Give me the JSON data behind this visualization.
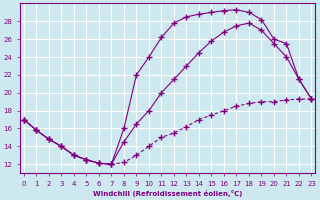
{
  "xlabel": "Windchill (Refroidissement éolien,°C)",
  "bg_color": "#cde8ef",
  "grid_color": "#ffffff",
  "line_color": "#800080",
  "x_ticks": [
    0,
    1,
    2,
    3,
    4,
    5,
    6,
    7,
    8,
    9,
    10,
    11,
    12,
    13,
    14,
    15,
    16,
    17,
    18,
    19,
    20,
    21,
    22,
    23
  ],
  "y_ticks": [
    12,
    14,
    16,
    18,
    20,
    22,
    24,
    26,
    28
  ],
  "xlim": [
    -0.3,
    23.3
  ],
  "ylim": [
    11.0,
    30.0
  ],
  "line1_x": [
    0,
    1,
    2,
    3,
    4,
    5,
    6,
    7,
    8,
    9,
    10,
    11,
    12,
    13,
    14,
    15,
    16,
    17,
    18,
    19,
    20,
    21,
    22,
    23
  ],
  "line1_y": [
    17.0,
    15.8,
    14.8,
    14.0,
    13.0,
    12.5,
    12.1,
    12.0,
    16.0,
    22.0,
    24.0,
    26.2,
    27.8,
    28.5,
    28.8,
    29.0,
    29.2,
    29.3,
    29.0,
    28.2,
    26.0,
    25.5,
    21.5,
    19.3
  ],
  "line2_x": [
    0,
    1,
    2,
    3,
    4,
    5,
    6,
    7,
    8,
    9,
    10,
    11,
    12,
    13,
    14,
    15,
    16,
    17,
    18,
    19,
    20,
    21,
    22,
    23
  ],
  "line2_y": [
    17.0,
    15.8,
    14.8,
    14.0,
    13.0,
    12.5,
    12.1,
    12.0,
    14.5,
    16.5,
    18.0,
    20.0,
    21.5,
    23.0,
    24.5,
    25.8,
    26.8,
    27.5,
    27.8,
    27.0,
    25.5,
    24.0,
    21.5,
    19.3
  ],
  "line3_x": [
    0,
    1,
    2,
    3,
    4,
    5,
    6,
    7,
    8,
    9,
    10,
    11,
    12,
    13,
    14,
    15,
    16,
    17,
    18,
    19,
    20,
    21,
    22,
    23
  ],
  "line3_y": [
    17.0,
    15.8,
    14.8,
    14.0,
    13.0,
    12.5,
    12.1,
    12.0,
    12.2,
    13.0,
    14.0,
    15.0,
    15.5,
    16.2,
    17.0,
    17.5,
    18.0,
    18.5,
    18.8,
    19.0,
    19.0,
    19.2,
    19.3,
    19.3
  ]
}
